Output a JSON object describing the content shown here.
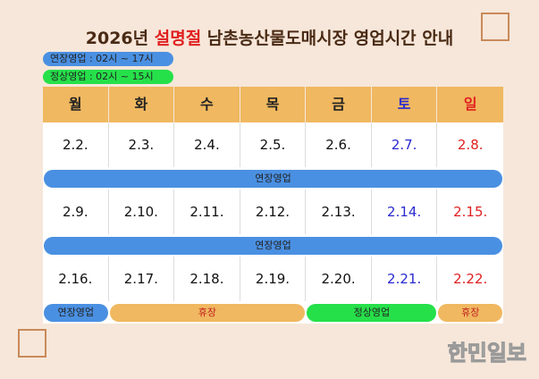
{
  "header": {
    "title": [
      "2026년 ",
      "설명절",
      " 남촌농산물도매시장 영업시간 안내"
    ]
  },
  "legend": [
    "연장영업 : 02시 ~ 17시",
    "정상영업 : 02시 ~ 15시"
  ],
  "table": {
    "headers": [
      "월",
      "화",
      "수",
      "목",
      "금",
      "토",
      "일"
    ],
    "weeks": [
      {
        "dates": [
          "2.2.",
          "2.3.",
          "2.4.",
          "2.5.",
          "2.6.",
          "2.7.",
          "2.8."
        ],
        "bands": [
          "연장영업"
        ]
      },
      {
        "dates": [
          "2.9.",
          "2.10.",
          "2.11.",
          "2.12.",
          "2.13.",
          "2.14.",
          "2.15."
        ],
        "bands": [
          "연장영업"
        ]
      },
      {
        "dates": [
          "2.16.",
          "2.17.",
          "2.18.",
          "2.19.",
          "2.20.",
          "2.21.",
          "2.22."
        ],
        "bands": [
          "연장영업",
          "휴장",
          "정상영업",
          "휴장"
        ]
      }
    ]
  },
  "logo": "한민일보"
}
